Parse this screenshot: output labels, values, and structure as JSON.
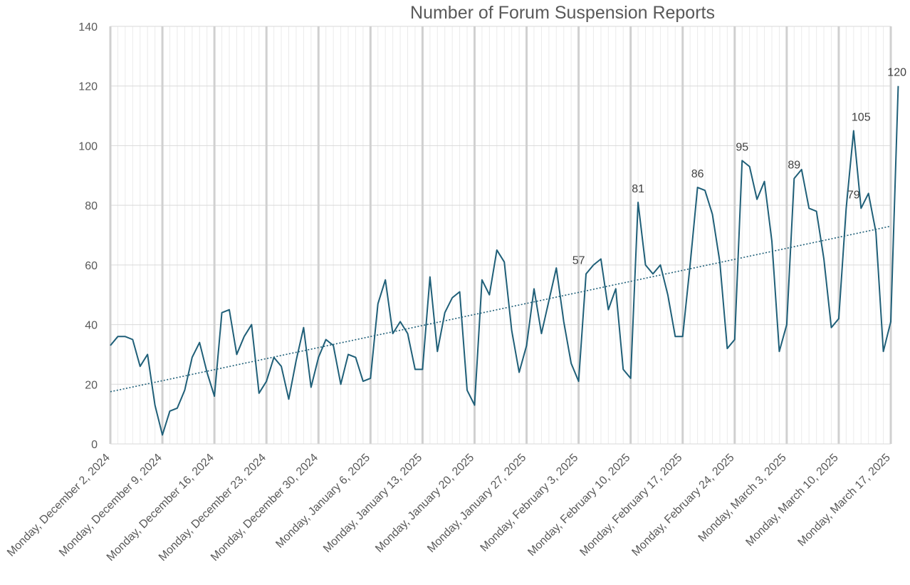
{
  "chart_data": {
    "type": "line",
    "title": "Number of Forum Suspension Reports",
    "xlabel": "",
    "ylabel": "",
    "ylim": [
      0,
      140
    ],
    "yticks": [
      0,
      20,
      40,
      60,
      80,
      100,
      120,
      140
    ],
    "x_start": "2024-12-02",
    "x_end": "2025-03-17",
    "x_tick_labels": [
      "Monday, December 2, 2024",
      "Monday, December 9, 2024",
      "Monday, December 16, 2024",
      "Monday, December 23, 2024",
      "Monday, December 30, 2024",
      "Monday, January 6, 2025",
      "Monday, January 13, 2025",
      "Monday, January 20, 2025",
      "Monday, January 27, 2025",
      "Monday, February 3, 2025",
      "Monday, February 10, 2025",
      "Monday, February 17, 2025",
      "Monday, February 24, 2025",
      "Monday, March 3, 2025",
      "Monday, March 10, 2025",
      "Monday, March 17, 2025"
    ],
    "grid": true,
    "legend": "none",
    "series": [
      {
        "color": "#1f5f78",
        "values": [
          33,
          36,
          36,
          35,
          26,
          30,
          13,
          3,
          11,
          12,
          18,
          29,
          34,
          24,
          16,
          44,
          45,
          30,
          36,
          40,
          17,
          21,
          29,
          26,
          15,
          28,
          39,
          19,
          29,
          35,
          33,
          20,
          30,
          29,
          21,
          22,
          47,
          55,
          37,
          41,
          37,
          25,
          25,
          56,
          31,
          44,
          49,
          51,
          18,
          13,
          55,
          50,
          65,
          61,
          38,
          24,
          33,
          52,
          37,
          48,
          59,
          41,
          27,
          21,
          57,
          60,
          62,
          45,
          52,
          25,
          22,
          81,
          60,
          57,
          60,
          50,
          36,
          36,
          60,
          86,
          85,
          77,
          61,
          32,
          35,
          95,
          93,
          82,
          88,
          68,
          31,
          40,
          89,
          92,
          79,
          78,
          62,
          39,
          42,
          79,
          105,
          79,
          84,
          71,
          31,
          41,
          120
        ]
      }
    ],
    "trendline": {
      "type": "linear",
      "color": "#1f5f78",
      "style": "dotted",
      "start_value": 17.5,
      "end_value": 73
    },
    "data_labels": [
      {
        "date": "2025-02-03",
        "value": "57"
      },
      {
        "date": "2025-02-11",
        "value": "81"
      },
      {
        "date": "2025-02-19",
        "value": "86"
      },
      {
        "date": "2025-02-25",
        "value": "95"
      },
      {
        "date": "2025-03-04",
        "value": "89"
      },
      {
        "date": "2025-03-12",
        "value": "79"
      },
      {
        "date": "2025-03-13",
        "value": "105"
      },
      {
        "date": "2025-03-19",
        "value": "120"
      }
    ],
    "colors": {
      "line": "#1f5f78",
      "grid_major": "#d9d9d9",
      "grid_minor": "#ebebeb",
      "weekly_band": "#d0d0d0",
      "text": "#595959"
    }
  }
}
